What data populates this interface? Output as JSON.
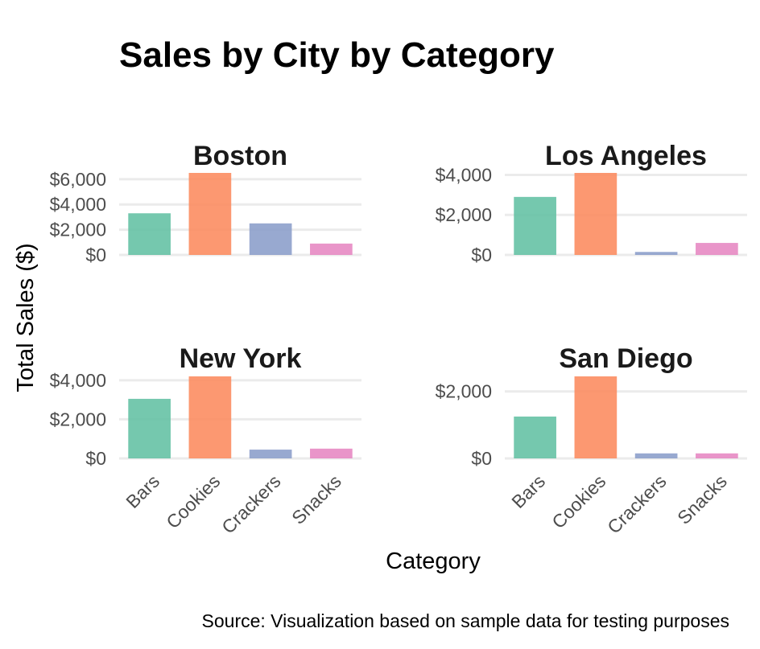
{
  "chart_data": {
    "type": "bar",
    "title": "Sales by City by Category",
    "xlabel": "Category",
    "ylabel": "Total Sales ($)",
    "caption": "Source: Visualization based on sample data for testing purposes",
    "categories": [
      "Bars",
      "Cookies",
      "Crackers",
      "Snacks"
    ],
    "colors": [
      "#66c2a5",
      "#fc8d62",
      "#8da0cb",
      "#e78ac3"
    ],
    "grid": true,
    "legend": "none",
    "facets": [
      {
        "name": "Boston",
        "values": [
          3300,
          6500,
          2500,
          900
        ],
        "ylim": [
          0,
          6500
        ],
        "yticks": [
          0,
          2000,
          4000,
          6000
        ],
        "ytick_labels": [
          "$0",
          "$2,000",
          "$4,000",
          "$6,000"
        ]
      },
      {
        "name": "Los Angeles",
        "values": [
          2900,
          4100,
          150,
          600
        ],
        "ylim": [
          0,
          4100
        ],
        "yticks": [
          0,
          2000,
          4000
        ],
        "ytick_labels": [
          "$0",
          "$2,000",
          "$4,000"
        ]
      },
      {
        "name": "New York",
        "values": [
          3050,
          4200,
          450,
          500
        ],
        "ylim": [
          0,
          4200
        ],
        "yticks": [
          0,
          2000,
          4000
        ],
        "ytick_labels": [
          "$0",
          "$2,000",
          "$4,000"
        ]
      },
      {
        "name": "San Diego",
        "values": [
          1250,
          2450,
          150,
          150
        ],
        "ylim": [
          0,
          2450
        ],
        "yticks": [
          0,
          2000
        ],
        "ytick_labels": [
          "$0",
          "$2,000"
        ]
      }
    ]
  }
}
